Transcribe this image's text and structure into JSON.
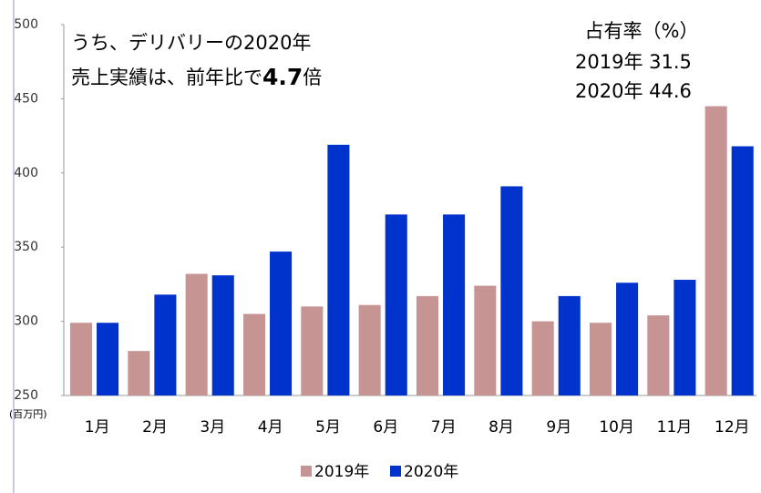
{
  "chart_data": {
    "type": "bar",
    "categories": [
      "1月",
      "2月",
      "3月",
      "4月",
      "5月",
      "6月",
      "7月",
      "8月",
      "9月",
      "10月",
      "11月",
      "12月"
    ],
    "series": [
      {
        "name": "2019年",
        "color": "#c79494",
        "values": [
          299,
          280,
          332,
          305,
          310,
          311,
          317,
          324,
          300,
          299,
          304,
          445
        ]
      },
      {
        "name": "2020年",
        "color": "#0033cc",
        "values": [
          299,
          318,
          331,
          347,
          419,
          372,
          372,
          391,
          317,
          326,
          328,
          418
        ]
      }
    ],
    "ylim": [
      250,
      500
    ],
    "yticks": [
      250,
      300,
      350,
      400,
      450,
      500
    ],
    "y_unit": "(百万円)",
    "annotation_left": [
      "うち、デリバリーの2020年",
      "売上実績は、前年比で",
      "4.7",
      "倍"
    ],
    "annotation_right": [
      "占有率（%）",
      "2019年 31.5",
      "2020年 44.6"
    ],
    "legend": "bottom"
  }
}
